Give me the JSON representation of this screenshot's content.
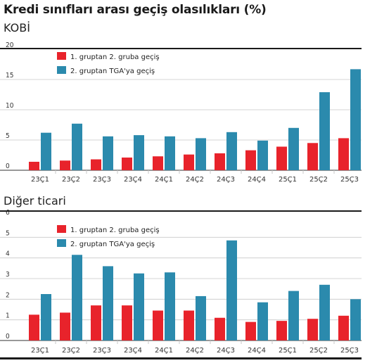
{
  "title": "Kredi sınıfları arası geçiş olasılıkları (%)",
  "colors": {
    "series1": "#e8232b",
    "series2": "#2b8aad",
    "grid": "#c8c8c8",
    "axis": "#333333"
  },
  "chart_data": [
    {
      "type": "bar",
      "title": "KOBİ",
      "categories": [
        "23Ç1",
        "23Ç2",
        "23Ç3",
        "23Ç4",
        "24Ç1",
        "24Ç2",
        "24Ç3",
        "24Ç4",
        "25Ç1",
        "25Ç2",
        "25Ç3"
      ],
      "series": [
        {
          "name": "1. gruptan 2. gruba geçiş",
          "values": [
            1.4,
            1.6,
            1.8,
            2.1,
            2.3,
            2.6,
            2.8,
            3.3,
            3.9,
            4.5,
            5.3
          ]
        },
        {
          "name": "2. gruptan TGA'ya geçiş",
          "values": [
            6.2,
            7.7,
            5.6,
            5.8,
            5.6,
            5.3,
            6.3,
            4.9,
            7.0,
            12.9,
            16.7
          ]
        }
      ],
      "yticks": [
        0,
        5,
        10,
        15,
        20
      ],
      "ylim": [
        0,
        20
      ],
      "grid": true,
      "legend": "top-left"
    },
    {
      "type": "bar",
      "title": "Diğer ticari",
      "categories": [
        "23Ç1",
        "23Ç2",
        "23Ç3",
        "23Ç4",
        "24Ç1",
        "24Ç2",
        "24Ç3",
        "24Ç4",
        "25Ç1",
        "25Ç2",
        "25Ç3"
      ],
      "series": [
        {
          "name": "1. gruptan 2. gruba geçiş",
          "values": [
            1.25,
            1.35,
            1.7,
            1.7,
            1.45,
            1.45,
            1.1,
            0.9,
            0.95,
            1.05,
            1.2
          ]
        },
        {
          "name": "2. gruptan TGA'ya geçiş",
          "values": [
            2.25,
            4.15,
            3.6,
            3.25,
            3.3,
            2.15,
            4.85,
            1.85,
            2.4,
            2.7,
            2.0
          ]
        }
      ],
      "yticks": [
        0,
        1,
        2,
        3,
        4,
        5,
        6
      ],
      "ylim": [
        0,
        6
      ],
      "grid": true,
      "legend": "top-left"
    }
  ]
}
